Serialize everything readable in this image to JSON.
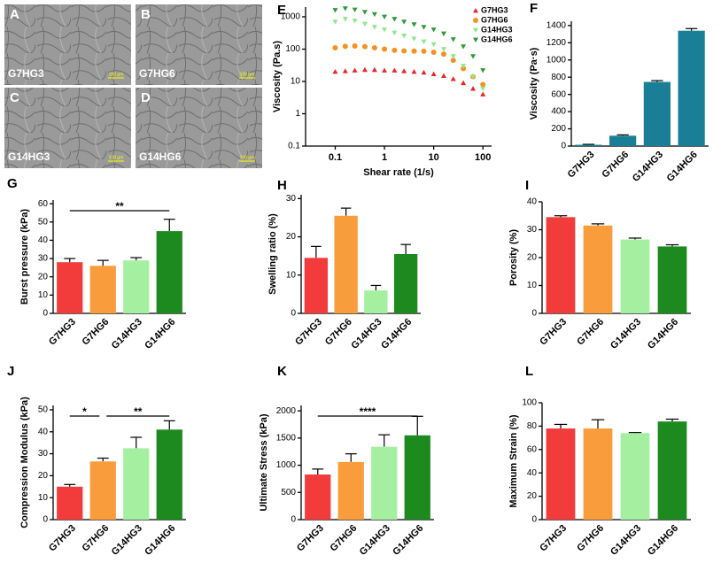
{
  "images": [
    {
      "panel": "A",
      "label": "G7HG3",
      "scale": "100 μm"
    },
    {
      "panel": "B",
      "label": "G7HG6",
      "scale": "100 μm"
    },
    {
      "panel": "C",
      "label": "G14HG3",
      "scale": "100 μm"
    },
    {
      "panel": "D",
      "label": "G14HG6",
      "scale": "100 μm"
    }
  ],
  "chart_data": [
    {
      "type": "scatter",
      "panel": "E",
      "xlabel": "Shear rate (1/s)",
      "ylabel": "Viscosity (Pa.s)",
      "log_x": true,
      "log_y": true,
      "x": [
        0.1,
        0.16,
        0.25,
        0.4,
        0.63,
        1,
        1.6,
        2.5,
        4,
        6.3,
        10,
        16,
        25,
        40,
        63,
        100
      ],
      "xlim": [
        0.025,
        150
      ],
      "xticks": [
        0.1,
        1,
        10,
        100
      ],
      "ylim": [
        0.1,
        2000
      ],
      "yticks": [
        0.1,
        1,
        10,
        100,
        1000
      ],
      "legend": "upper right",
      "series": [
        {
          "name": "G7HG3",
          "color": "#e8262a",
          "marker": "triangle-up",
          "values": [
            20,
            21,
            22,
            23,
            23,
            22,
            22,
            21,
            20,
            19,
            17,
            15,
            12,
            9,
            6,
            4
          ]
        },
        {
          "name": "G7HG6",
          "color": "#f7901e",
          "marker": "circle",
          "values": [
            110,
            122,
            125,
            120,
            110,
            100,
            92,
            88,
            87,
            86,
            80,
            70,
            45,
            25,
            14,
            8
          ]
        },
        {
          "name": "G14HG3",
          "color": "#8ee88a",
          "marker": "triangle-down",
          "values": [
            700,
            850,
            750,
            600,
            480,
            400,
            320,
            260,
            210,
            170,
            140,
            100,
            60,
            30,
            14,
            6
          ]
        },
        {
          "name": "G14HG6",
          "color": "#2f9a3a",
          "marker": "triangle-down",
          "values": [
            1600,
            1800,
            1650,
            1400,
            1200,
            1000,
            850,
            700,
            580,
            480,
            400,
            300,
            200,
            120,
            60,
            22
          ]
        }
      ]
    },
    {
      "type": "bar",
      "panel": "F",
      "ylabel": "Viscosity (Pa·s)",
      "categories": [
        "G7HG3",
        "G7HG6",
        "G14HG3",
        "G14HG6"
      ],
      "values": [
        15,
        120,
        745,
        1340
      ],
      "errors": [
        5,
        10,
        15,
        25
      ],
      "colors": [
        "#1a7f96",
        "#1a7f96",
        "#1a7f96",
        "#1a7f96"
      ],
      "ylim": [
        0,
        1450
      ],
      "yticks": [
        0,
        200,
        400,
        600,
        800,
        1000,
        1200,
        1400
      ]
    },
    {
      "type": "bar",
      "panel": "G",
      "ylabel": "Burst pressure (kPa)",
      "categories": [
        "G7HG3",
        "G7HG6",
        "G14HG3",
        "G14HG6"
      ],
      "values": [
        28,
        26,
        29,
        45
      ],
      "errors": [
        2,
        3,
        1.5,
        6.5
      ],
      "colors": [
        "#f23c3c",
        "#f99c3b",
        "#a5f0a0",
        "#1d8a20"
      ],
      "ylim": [
        0,
        62
      ],
      "yticks": [
        0,
        10,
        20,
        30,
        40,
        50,
        60
      ],
      "significance": [
        {
          "label": "**",
          "groups": [
            "G7HG3",
            "G14HG6"
          ]
        }
      ]
    },
    {
      "type": "bar",
      "panel": "H",
      "ylabel": "Swelling ratio (%)",
      "categories": [
        "G7HG3",
        "G7HG6",
        "G14HG3",
        "G14HG6"
      ],
      "values": [
        14.5,
        25.5,
        6,
        15.5
      ],
      "errors": [
        3,
        2,
        1.3,
        2.5
      ],
      "colors": [
        "#f23c3c",
        "#f99c3b",
        "#a5f0a0",
        "#1d8a20"
      ],
      "ylim": [
        0,
        31
      ],
      "yticks": [
        0,
        10,
        20,
        30
      ]
    },
    {
      "type": "bar",
      "panel": "I",
      "ylabel": "Porosity (%)",
      "categories": [
        "G7HG3",
        "G7HG6",
        "G14HG3",
        "G14HG6"
      ],
      "values": [
        34.5,
        31.5,
        26.5,
        24
      ],
      "errors": [
        0.5,
        0.6,
        0.5,
        0.6
      ],
      "colors": [
        "#f23c3c",
        "#f99c3b",
        "#a5f0a0",
        "#1d8a20"
      ],
      "ylim": [
        0,
        40
      ],
      "yticks": [
        0,
        10,
        20,
        30,
        40
      ]
    },
    {
      "type": "bar",
      "panel": "J",
      "ylabel": "Compression Modulus (kPa)",
      "categories": [
        "G7HG3",
        "G7HG6",
        "G14HG3",
        "G14HG6"
      ],
      "values": [
        15,
        26.5,
        32.5,
        41
      ],
      "errors": [
        1,
        1.5,
        5,
        4
      ],
      "colors": [
        "#f23c3c",
        "#f99c3b",
        "#a5f0a0",
        "#1d8a20"
      ],
      "ylim": [
        0,
        52
      ],
      "yticks": [
        0,
        10,
        20,
        30,
        40,
        50
      ],
      "significance": [
        {
          "label": "*",
          "groups": [
            "G7HG3",
            "G7HG6"
          ]
        },
        {
          "label": "**",
          "groups": [
            "G7HG6",
            "G14HG6"
          ]
        }
      ]
    },
    {
      "type": "bar",
      "panel": "K",
      "ylabel": "Ultimate Stress (kPa)",
      "categories": [
        "G7HG3",
        "G7HG6",
        "G14HG3",
        "G14HG6"
      ],
      "values": [
        830,
        1060,
        1340,
        1550
      ],
      "errors": [
        100,
        150,
        220,
        350
      ],
      "colors": [
        "#f23c3c",
        "#f99c3b",
        "#a5f0a0",
        "#1d8a20"
      ],
      "ylim": [
        0,
        2100
      ],
      "yticks": [
        0,
        500,
        1000,
        1500,
        2000
      ],
      "significance": [
        {
          "label": "****",
          "groups": [
            "G7HG3",
            "G14HG6"
          ]
        }
      ]
    },
    {
      "type": "bar",
      "panel": "L",
      "ylabel": "Maximum Strain (%)",
      "categories": [
        "G7HG3",
        "G7HG6",
        "G14HG3",
        "G14HG6"
      ],
      "values": [
        78,
        78,
        74,
        84
      ],
      "errors": [
        3.5,
        7.5,
        0.5,
        2
      ],
      "colors": [
        "#f23c3c",
        "#f99c3b",
        "#a5f0a0",
        "#1d8a20"
      ],
      "ylim": [
        0,
        100
      ],
      "yticks": [
        0,
        20,
        40,
        60,
        80,
        100
      ]
    }
  ]
}
